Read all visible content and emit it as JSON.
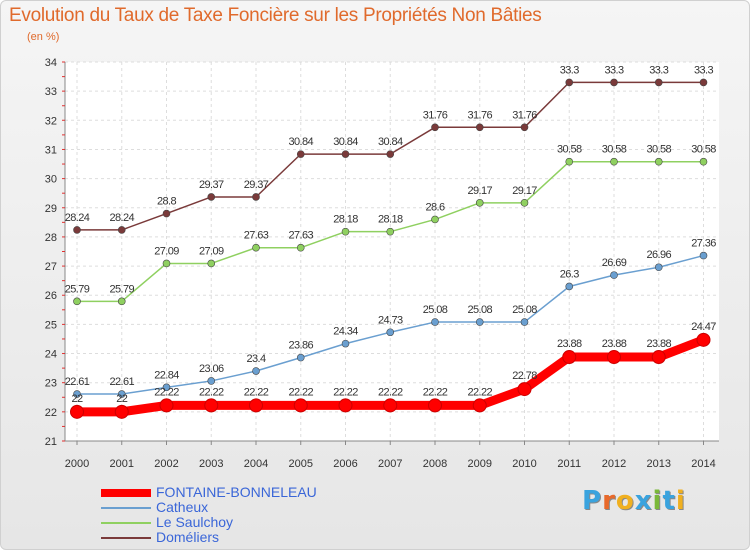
{
  "header": {
    "title": "Evolution du Taux de Taxe Foncière sur les Propriétés Non Bâties",
    "subtitle": "(en %)"
  },
  "logo": {
    "text": "Proxiti",
    "letter_colors": [
      "#3aa3de",
      "#e8692a",
      "#f0b020",
      "#3aa3de",
      "#7ab83a",
      "#3aa3de",
      "#f0b020"
    ]
  },
  "chart_data": {
    "type": "line",
    "title": "Evolution du Taux de Taxe Foncière sur les Propriétés Non Bâties",
    "ylabel": "(en %)",
    "x": [
      "2000",
      "2001",
      "2002",
      "2003",
      "2004",
      "2005",
      "2006",
      "2007",
      "2008",
      "2009",
      "2010",
      "2011",
      "2012",
      "2013",
      "2014"
    ],
    "y_ticks": [
      21,
      22,
      23,
      24,
      25,
      26,
      27,
      28,
      29,
      30,
      31,
      32,
      33,
      34
    ],
    "ylim": [
      21,
      34
    ],
    "grid": true,
    "legend_position": "bottom-left",
    "series": [
      {
        "name": "Doméliers",
        "color": "#7a3a3a",
        "values": [
          28.24,
          28.24,
          28.8,
          29.37,
          29.37,
          30.84,
          30.84,
          30.84,
          31.76,
          31.76,
          31.76,
          33.3,
          33.3,
          33.3,
          33.3
        ],
        "labels": [
          "28.24",
          "28.24",
          "28.8",
          "29.37",
          "29.37",
          "30.84",
          "30.84",
          "30.84",
          "31.76",
          "31.76",
          "31.76",
          "33.3",
          "33.3",
          "33.3",
          "33.3"
        ]
      },
      {
        "name": "Le Saulchoy",
        "color": "#8fd060",
        "values": [
          25.79,
          25.79,
          27.09,
          27.09,
          27.63,
          27.63,
          28.18,
          28.18,
          28.6,
          29.17,
          29.17,
          30.58,
          30.58,
          30.58,
          30.58
        ],
        "labels": [
          "25.79",
          "25.79",
          "27.09",
          "27.09",
          "27.63",
          "27.63",
          "28.18",
          "28.18",
          "28.6",
          "29.17",
          "29.17",
          "30.58",
          "30.58",
          "30.58",
          "30.58"
        ]
      },
      {
        "name": "Catheux",
        "color": "#6a9fd0",
        "values": [
          22.61,
          22.61,
          22.84,
          23.06,
          23.4,
          23.86,
          24.34,
          24.73,
          25.08,
          25.08,
          25.08,
          26.3,
          26.69,
          26.96,
          27.36
        ],
        "labels": [
          "22.61",
          "22.61",
          "22.84",
          "23.06",
          "23.4",
          "23.86",
          "24.34",
          "24.73",
          "25.08",
          "25.08",
          "25.08",
          "26.3",
          "26.69",
          "26.96",
          "27.36"
        ]
      },
      {
        "name": "FONTAINE-BONNELEAU",
        "color": "#ff0000",
        "values": [
          22,
          22,
          22.22,
          22.22,
          22.22,
          22.22,
          22.22,
          22.22,
          22.22,
          22.22,
          22.78,
          23.88,
          23.88,
          23.88,
          24.47
        ],
        "labels": [
          "22",
          "22",
          "22.22",
          "22.22",
          "22.22",
          "22.22",
          "22.22",
          "22.22",
          "22.22",
          "22.22",
          "22.78",
          "23.88",
          "23.88",
          "23.88",
          "24.47"
        ]
      }
    ],
    "legend": [
      {
        "name": "FONTAINE-BONNELEAU",
        "color": "#ff0000"
      },
      {
        "name": "Catheux",
        "color": "#6a9fd0"
      },
      {
        "name": "Le Saulchoy",
        "color": "#8fd060"
      },
      {
        "name": "Doméliers",
        "color": "#7a3a3a"
      }
    ]
  }
}
